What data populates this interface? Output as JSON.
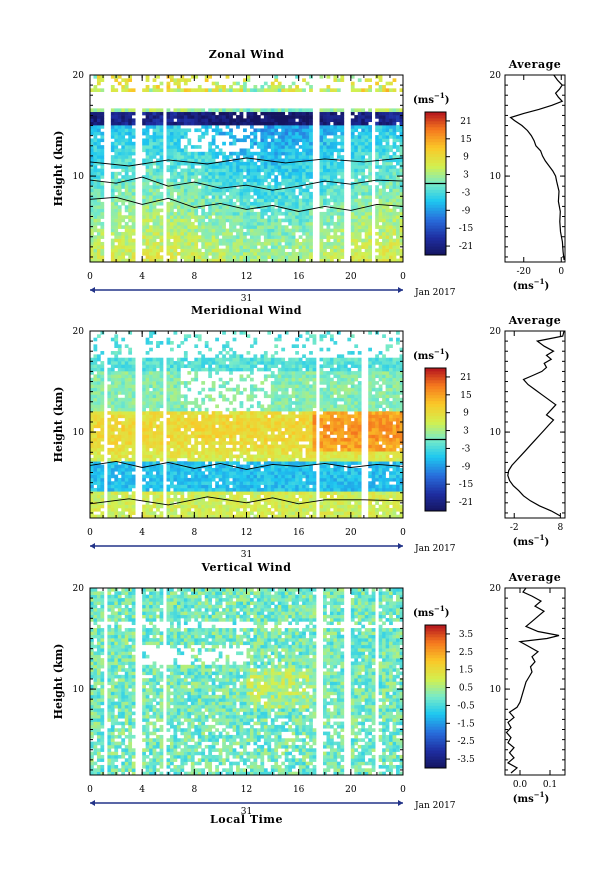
{
  "chart_data": [
    {
      "type": "heatmap",
      "title": "Zonal Wind",
      "ylabel": "Height (km)",
      "xlabel": "",
      "x_ticks": [
        "0",
        "4",
        "8",
        "12",
        "16",
        "20",
        "0"
      ],
      "xlim": [
        0,
        24
      ],
      "y_ticks": [
        "20",
        "10"
      ],
      "ylim": [
        1.5,
        20
      ],
      "date_label": "31",
      "month_label": "Jan 2017",
      "colorbar": {
        "unit_base": "(ms",
        "unit_exp": "−1",
        "unit_close": ")",
        "ticks": [
          "21",
          "15",
          "9",
          "3",
          "-3",
          "-9",
          "-15",
          "-21"
        ],
        "range": [
          -24,
          24
        ],
        "zero_line_value": 0
      },
      "average": {
        "title": "Average",
        "x_ticks": [
          "-20",
          "0"
        ],
        "xlim": [
          -30,
          2
        ],
        "xlabel_base": "(ms",
        "xlabel_exp": "−1",
        "xlabel_close": ")",
        "profile": [
          [
            1.7,
            1.5
          ],
          [
            2.5,
            1.0
          ],
          [
            3.5,
            0.6
          ],
          [
            4.5,
            -0.4
          ],
          [
            5.5,
            -0.8
          ],
          [
            6.5,
            -0.5
          ],
          [
            7.5,
            -1.5
          ],
          [
            8.5,
            -1.2
          ],
          [
            9.5,
            -2.5
          ],
          [
            10.0,
            -3.0
          ],
          [
            10.5,
            -4.5
          ],
          [
            11.0,
            -6.5
          ],
          [
            11.5,
            -8.5
          ],
          [
            12.0,
            -10.0
          ],
          [
            12.5,
            -11.0
          ],
          [
            13.0,
            -13.5
          ],
          [
            13.5,
            -14.5
          ],
          [
            14.0,
            -16.0
          ],
          [
            14.5,
            -18.0
          ],
          [
            15.0,
            -21.0
          ],
          [
            15.5,
            -25.0
          ],
          [
            15.8,
            -27.0
          ],
          [
            16.2,
            -20.0
          ],
          [
            16.6,
            -12.0
          ],
          [
            17.0,
            -5.0
          ],
          [
            17.4,
            0.5
          ],
          [
            17.8,
            -1.5
          ],
          [
            18.2,
            -3.0
          ],
          [
            18.6,
            -1.0
          ],
          [
            19.0,
            0.5
          ],
          [
            19.5,
            -2.0
          ],
          [
            20.0,
            -4.0
          ]
        ]
      },
      "contours": [
        [
          [
            0,
            9.6
          ],
          [
            2,
            9.3
          ],
          [
            4,
            9.9
          ],
          [
            6,
            9.0
          ],
          [
            8,
            9.4
          ],
          [
            10,
            8.8
          ],
          [
            12,
            9.1
          ],
          [
            14,
            8.6
          ],
          [
            16,
            9.0
          ],
          [
            18,
            9.5
          ],
          [
            20,
            9.2
          ],
          [
            22,
            9.6
          ],
          [
            24,
            9.5
          ]
        ],
        [
          [
            0,
            7.7
          ],
          [
            2,
            7.9
          ],
          [
            4,
            7.2
          ],
          [
            6,
            7.8
          ],
          [
            8,
            6.9
          ],
          [
            10,
            7.3
          ],
          [
            12,
            6.7
          ],
          [
            14,
            7.1
          ],
          [
            16,
            6.5
          ],
          [
            18,
            7.0
          ],
          [
            20,
            6.6
          ],
          [
            22,
            7.2
          ],
          [
            24,
            7.0
          ]
        ],
        [
          [
            0,
            11.4
          ],
          [
            3,
            11.0
          ],
          [
            6,
            11.6
          ],
          [
            9,
            11.2
          ],
          [
            12,
            11.8
          ],
          [
            15,
            11.3
          ],
          [
            18,
            11.7
          ],
          [
            21,
            11.4
          ],
          [
            24,
            11.8
          ]
        ]
      ]
    },
    {
      "type": "heatmap",
      "title": "Meridional Wind",
      "ylabel": "Height (km)",
      "xlabel": "",
      "x_ticks": [
        "0",
        "4",
        "8",
        "12",
        "16",
        "20",
        "0"
      ],
      "xlim": [
        0,
        24
      ],
      "y_ticks": [
        "20",
        "10"
      ],
      "ylim": [
        1.5,
        20
      ],
      "date_label": "31",
      "month_label": "Jan 2017",
      "colorbar": {
        "unit_base": "(ms",
        "unit_exp": "−1",
        "unit_close": ")",
        "ticks": [
          "21",
          "15",
          "9",
          "3",
          "-3",
          "-9",
          "-15",
          "-21"
        ],
        "range": [
          -24,
          24
        ],
        "zero_line_value": 0
      },
      "average": {
        "title": "Average",
        "x_ticks": [
          "-2",
          "8"
        ],
        "xlim": [
          -4,
          9
        ],
        "xlabel_base": "(ms",
        "xlabel_exp": "−1",
        "xlabel_close": ")",
        "profile": [
          [
            1.7,
            8.0
          ],
          [
            2.2,
            6.0
          ],
          [
            2.7,
            3.5
          ],
          [
            3.2,
            1.5
          ],
          [
            3.7,
            0.0
          ],
          [
            4.2,
            -1.0
          ],
          [
            4.7,
            -2.2
          ],
          [
            5.2,
            -3.0
          ],
          [
            5.7,
            -3.4
          ],
          [
            6.2,
            -3.2
          ],
          [
            6.7,
            -2.5
          ],
          [
            7.2,
            -1.5
          ],
          [
            7.7,
            -0.5
          ],
          [
            8.2,
            0.5
          ],
          [
            8.7,
            1.5
          ],
          [
            9.2,
            2.5
          ],
          [
            9.7,
            3.5
          ],
          [
            10.2,
            4.5
          ],
          [
            10.7,
            5.5
          ],
          [
            11.2,
            6.5
          ],
          [
            11.7,
            5.0
          ],
          [
            12.2,
            6.0
          ],
          [
            12.7,
            7.0
          ],
          [
            13.2,
            5.5
          ],
          [
            13.7,
            4.0
          ],
          [
            14.2,
            2.5
          ],
          [
            14.7,
            1.0
          ],
          [
            15.2,
            0.0
          ],
          [
            15.6,
            2.0
          ],
          [
            16.0,
            4.0
          ],
          [
            16.4,
            5.0
          ],
          [
            16.8,
            4.5
          ],
          [
            17.2,
            6.0
          ],
          [
            17.6,
            5.0
          ],
          [
            18.0,
            6.5
          ],
          [
            18.5,
            4.5
          ],
          [
            19.0,
            3.0
          ],
          [
            19.5,
            8.5
          ],
          [
            20.0,
            8.8
          ]
        ]
      },
      "contours": [
        [
          [
            0,
            6.7
          ],
          [
            2,
            7.1
          ],
          [
            4,
            6.5
          ],
          [
            6,
            7.0
          ],
          [
            8,
            6.4
          ],
          [
            10,
            6.9
          ],
          [
            12,
            6.3
          ],
          [
            14,
            6.8
          ],
          [
            16,
            6.6
          ],
          [
            18,
            6.9
          ],
          [
            20,
            6.5
          ],
          [
            22,
            6.8
          ],
          [
            24,
            6.6
          ]
        ],
        [
          [
            0,
            2.9
          ],
          [
            3,
            3.4
          ],
          [
            6,
            2.8
          ],
          [
            9,
            3.6
          ],
          [
            12,
            3.0
          ],
          [
            14,
            3.5
          ],
          [
            16,
            2.9
          ],
          [
            18,
            3.3
          ],
          [
            21,
            3.3
          ],
          [
            24,
            3.2
          ]
        ]
      ]
    },
    {
      "type": "heatmap",
      "title": "Vertical Wind",
      "ylabel": "Height (km)",
      "xlabel": "Local Time",
      "x_ticks": [
        "0",
        "4",
        "8",
        "12",
        "16",
        "20",
        "0"
      ],
      "xlim": [
        0,
        24
      ],
      "y_ticks": [
        "20",
        "10"
      ],
      "ylim": [
        1.5,
        20
      ],
      "date_label": "31",
      "month_label": "Jan 2017",
      "colorbar": {
        "unit_base": "(ms",
        "unit_exp": "−1",
        "unit_close": ")",
        "ticks": [
          "3.5",
          "2.5",
          "1.5",
          "0.5",
          "-0.5",
          "-1.5",
          "-2.5",
          "-3.5"
        ],
        "range": [
          -4,
          4
        ],
        "zero_line_value": null
      },
      "average": {
        "title": "Average",
        "x_ticks": [
          "0.0",
          "0.1"
        ],
        "xlim": [
          -0.05,
          0.15
        ],
        "xlabel_base": "(ms",
        "xlabel_exp": "−1",
        "xlabel_close": ")",
        "profile": [
          [
            1.7,
            -0.03
          ],
          [
            2.2,
            -0.01
          ],
          [
            2.7,
            -0.04
          ],
          [
            3.2,
            -0.02
          ],
          [
            3.7,
            -0.035
          ],
          [
            4.2,
            -0.02
          ],
          [
            4.7,
            -0.04
          ],
          [
            5.2,
            -0.03
          ],
          [
            5.7,
            -0.045
          ],
          [
            6.2,
            -0.03
          ],
          [
            6.7,
            -0.04
          ],
          [
            7.2,
            -0.02
          ],
          [
            7.7,
            -0.035
          ],
          [
            8.2,
            -0.01
          ],
          [
            8.7,
            0.0
          ],
          [
            9.2,
            0.005
          ],
          [
            9.7,
            0.01
          ],
          [
            10.2,
            0.015
          ],
          [
            10.7,
            0.02
          ],
          [
            11.2,
            0.03
          ],
          [
            11.7,
            0.04
          ],
          [
            12.2,
            0.035
          ],
          [
            12.7,
            0.05
          ],
          [
            13.2,
            0.04
          ],
          [
            13.7,
            0.06
          ],
          [
            14.2,
            0.03
          ],
          [
            14.7,
            0.0
          ],
          [
            15.0,
            0.09
          ],
          [
            15.3,
            0.13
          ],
          [
            15.7,
            0.06
          ],
          [
            16.2,
            0.02
          ],
          [
            16.7,
            0.04
          ],
          [
            17.2,
            0.06
          ],
          [
            17.7,
            0.08
          ],
          [
            18.2,
            0.05
          ],
          [
            18.7,
            0.07
          ],
          [
            19.2,
            0.04
          ],
          [
            19.6,
            0.01
          ],
          [
            20.0,
            0.02
          ]
        ]
      },
      "contours": []
    }
  ]
}
